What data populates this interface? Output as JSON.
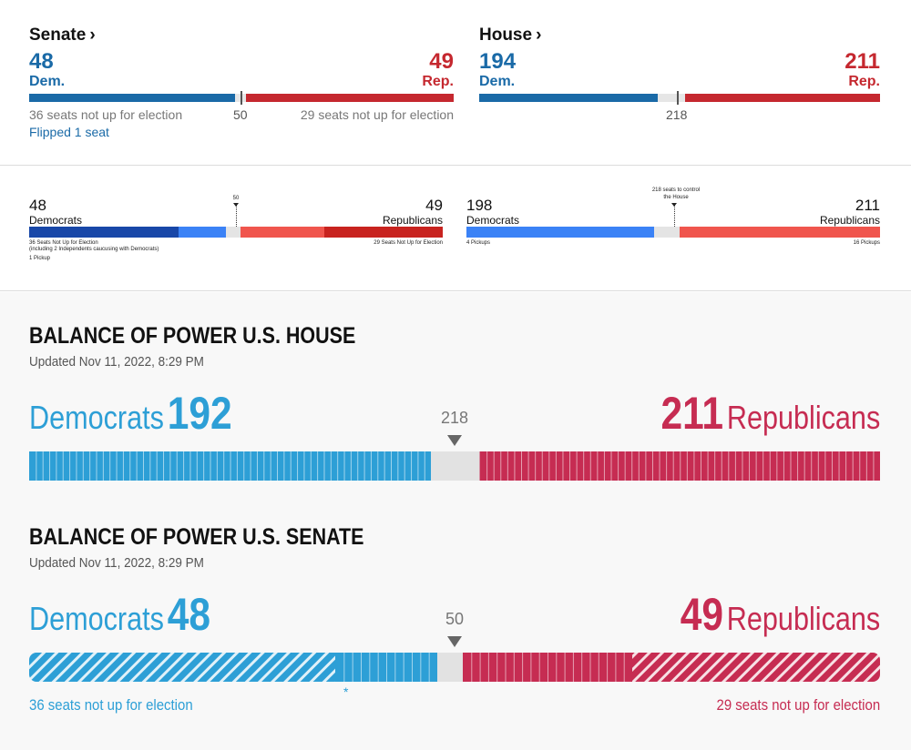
{
  "nyt": {
    "senate": {
      "title": "Senate",
      "chevron": "›",
      "dem_count": "48",
      "dem_label": "Dem.",
      "rep_count": "49",
      "rep_label": "Rep.",
      "threshold": "50",
      "dem_note": "36 seats not up for election",
      "rep_note": "29 seats not up for election",
      "flip_note": "Flipped 1 seat"
    },
    "house": {
      "title": "House",
      "chevron": "›",
      "dem_count": "194",
      "dem_label": "Dem.",
      "rep_count": "211",
      "rep_label": "Rep.",
      "threshold": "218"
    }
  },
  "nbc": {
    "senate": {
      "dem_count": "48",
      "dem_label": "Democrats",
      "rep_count": "49",
      "rep_label": "Republicans",
      "threshold": "50",
      "dem_note_line1": "36 Seats Not Up for Election",
      "dem_note_line2": "(including 2 Independents caucusing with Democrats)",
      "dem_pickup": "1 Pickup",
      "rep_note": "29 Seats Not Up for Election"
    },
    "house": {
      "dem_count": "198",
      "dem_label": "Democrats",
      "rep_count": "211",
      "rep_label": "Republicans",
      "threshold_line1": "218 seats to control",
      "threshold_line2": "the House",
      "dem_pickup": "4 Pickups",
      "rep_pickup": "16 Pickups"
    }
  },
  "ap": {
    "house": {
      "heading": "BALANCE OF POWER U.S. HOUSE",
      "updated": "Updated Nov 11, 2022, 8:29 PM",
      "dem_label": "Democrats",
      "dem_count": "192",
      "rep_count": "211",
      "rep_label": "Republicans",
      "threshold": "218"
    },
    "senate": {
      "heading": "BALANCE OF POWER U.S. SENATE",
      "updated": "Updated Nov 11, 2022, 8:29 PM",
      "dem_label": "Democrats",
      "dem_count": "48",
      "rep_count": "49",
      "rep_label": "Republicans",
      "threshold": "50",
      "asterisk": "*",
      "dem_note": "36 seats not up for election",
      "rep_note": "29 seats not up for election"
    }
  },
  "colors": {
    "nyt_dem": "#1a6aa7",
    "nyt_rep": "#c5282f",
    "nbc_dem_dark": "#1847a8",
    "nbc_dem_light": "#3b82f6",
    "nbc_rep_light": "#f0554d",
    "nbc_rep_dark": "#c8231f",
    "ap_dem": "#2d9fd6",
    "ap_rep": "#c62c52",
    "undecided": "#e2e2e2"
  }
}
